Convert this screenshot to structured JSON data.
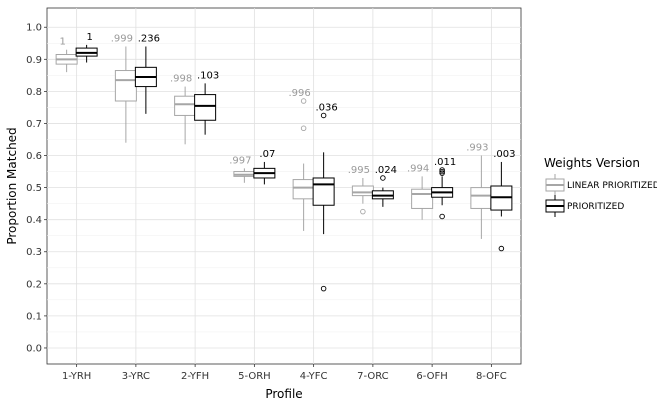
{
  "chart_data": {
    "type": "boxplot",
    "xlabel": "Profile",
    "ylabel": "Proportion Matched",
    "ylim": [
      -0.05,
      1.06
    ],
    "yticks": [
      0.0,
      0.1,
      0.2,
      0.3,
      0.4,
      0.5,
      0.6,
      0.7,
      0.8,
      0.9,
      1.0
    ],
    "ytick_labels": [
      "0.0",
      "0.1",
      "0.2",
      "0.3",
      "0.4",
      "0.5",
      "0.6",
      "0.7",
      "0.8",
      "0.9",
      "1.0"
    ],
    "categories": [
      "1-YRH",
      "3-YRC",
      "2-YFH",
      "5-ORH",
      "4-YFC",
      "7-ORC",
      "6-OFH",
      "8-OFC"
    ],
    "legend": {
      "title": "Weights Version",
      "position": "right",
      "entries": [
        "LINEAR PRIORITIZED",
        "PRIORITIZED"
      ]
    },
    "series": [
      {
        "name": "LINEAR PRIORITIZED",
        "color": "#a6a6a6",
        "boxes": [
          {
            "whisker_low": 0.86,
            "q1": 0.885,
            "median": 0.9,
            "q3": 0.915,
            "whisker_high": 0.93,
            "outliers": [],
            "label": "1"
          },
          {
            "whisker_low": 0.64,
            "q1": 0.77,
            "median": 0.835,
            "q3": 0.865,
            "whisker_high": 0.94,
            "outliers": [],
            "label": ".999"
          },
          {
            "whisker_low": 0.635,
            "q1": 0.725,
            "median": 0.76,
            "q3": 0.785,
            "whisker_high": 0.815,
            "outliers": [],
            "label": ".998"
          },
          {
            "whisker_low": 0.515,
            "q1": 0.535,
            "median": 0.54,
            "q3": 0.55,
            "whisker_high": 0.56,
            "outliers": [],
            "label": ".997"
          },
          {
            "whisker_low": 0.365,
            "q1": 0.465,
            "median": 0.5,
            "q3": 0.525,
            "whisker_high": 0.575,
            "outliers": [
              0.685,
              0.77
            ],
            "label": ".996"
          },
          {
            "whisker_low": 0.45,
            "q1": 0.475,
            "median": 0.485,
            "q3": 0.505,
            "whisker_high": 0.53,
            "outliers": [
              0.425
            ],
            "label": ".995"
          },
          {
            "whisker_low": 0.4,
            "q1": 0.435,
            "median": 0.48,
            "q3": 0.495,
            "whisker_high": 0.535,
            "outliers": [],
            "label": ".994"
          },
          {
            "whisker_low": 0.34,
            "q1": 0.435,
            "median": 0.475,
            "q3": 0.5,
            "whisker_high": 0.6,
            "outliers": [],
            "label": ".993"
          }
        ]
      },
      {
        "name": "PRIORITIZED",
        "color": "#000000",
        "boxes": [
          {
            "whisker_low": 0.89,
            "q1": 0.91,
            "median": 0.92,
            "q3": 0.935,
            "whisker_high": 0.945,
            "outliers": [],
            "label": "1"
          },
          {
            "whisker_low": 0.73,
            "q1": 0.815,
            "median": 0.845,
            "q3": 0.875,
            "whisker_high": 0.94,
            "outliers": [],
            "label": ".236"
          },
          {
            "whisker_low": 0.665,
            "q1": 0.71,
            "median": 0.755,
            "q3": 0.79,
            "whisker_high": 0.825,
            "outliers": [],
            "label": ".103"
          },
          {
            "whisker_low": 0.51,
            "q1": 0.53,
            "median": 0.545,
            "q3": 0.56,
            "whisker_high": 0.58,
            "outliers": [],
            "label": ".07"
          },
          {
            "whisker_low": 0.355,
            "q1": 0.445,
            "median": 0.51,
            "q3": 0.53,
            "whisker_high": 0.61,
            "outliers": [
              0.725,
              0.185
            ],
            "label": ".036"
          },
          {
            "whisker_low": 0.44,
            "q1": 0.465,
            "median": 0.475,
            "q3": 0.49,
            "whisker_high": 0.5,
            "outliers": [
              0.53
            ],
            "label": ".024"
          },
          {
            "whisker_low": 0.445,
            "q1": 0.47,
            "median": 0.485,
            "q3": 0.5,
            "whisker_high": 0.535,
            "outliers": [
              0.545,
              0.55,
              0.555,
              0.41
            ],
            "label": ".011"
          },
          {
            "whisker_low": 0.41,
            "q1": 0.43,
            "median": 0.47,
            "q3": 0.505,
            "whisker_high": 0.58,
            "outliers": [
              0.31
            ],
            "label": ".003"
          }
        ]
      }
    ]
  }
}
